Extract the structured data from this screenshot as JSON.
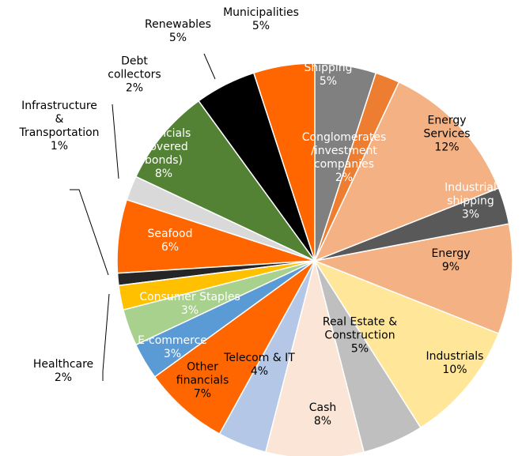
{
  "chart_data": {
    "type": "pie",
    "categories": [
      "Shipping",
      "Conglomerates\n/investment\ncompanies",
      "Energy\nServices",
      "Industrial\nshipping",
      "Energy",
      "Industrials",
      "Real Estate &\nConstruction",
      "Cash",
      "Telecom & IT",
      "Other\nfinancials",
      "E-commerce",
      "Consumer Staples",
      "Healthcare",
      "Infrastructure\n&\nTransportation",
      "Seafood",
      "Debt\ncollectors",
      "Financials\n(covered\nbonds)",
      "Renewables",
      "Municipalities"
    ],
    "values": [
      5,
      2,
      12,
      3,
      9,
      10,
      5,
      8,
      4,
      7,
      3,
      3,
      2,
      1,
      6,
      2,
      8,
      5,
      5
    ],
    "value_labels": [
      "5%",
      "2%",
      "12%",
      "3%",
      "9%",
      "10%",
      "5%",
      "8%",
      "4%",
      "7%",
      "3%",
      "3%",
      "2%",
      "1%",
      "6%",
      "2%",
      "8%",
      "5%",
      "5%"
    ],
    "colors": [
      "#808080",
      "#ed7d31",
      "#f4b183",
      "#595959",
      "#f4b183",
      "#ffe699",
      "#bfbfbf",
      "#fbe5d6",
      "#b4c7e7",
      "#ff6600",
      "#5b9bd5",
      "#a9d18e",
      "#ffc000",
      "#262626",
      "#ff6600",
      "#d9d9d9",
      "#548235",
      "#000000",
      "#ff6600"
    ]
  }
}
